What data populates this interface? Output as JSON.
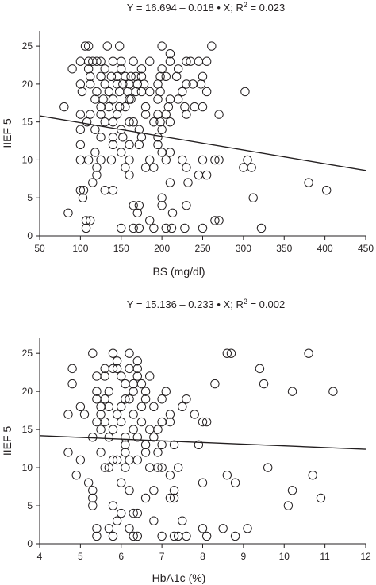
{
  "chart_data": [
    {
      "type": "scatter",
      "title_parts": [
        "Y = 16.694 – 0.018 • X; R",
        "2",
        " = 0.023"
      ],
      "xlabel": "BS (mg/dl)",
      "ylabel": "IIEF 5",
      "xlim": [
        50,
        450
      ],
      "ylim": [
        0,
        27
      ],
      "xticks": [
        50,
        100,
        150,
        200,
        250,
        300,
        350,
        400,
        450
      ],
      "yticks": [
        0,
        5,
        10,
        15,
        20,
        25
      ],
      "fit_line": {
        "x": [
          50,
          450
        ],
        "y": [
          15.8,
          8.6
        ]
      },
      "points": [
        [
          106,
          25
        ],
        [
          110,
          25
        ],
        [
          133,
          25
        ],
        [
          148,
          25
        ],
        [
          200,
          25
        ],
        [
          210,
          24
        ],
        [
          261,
          25
        ],
        [
          100,
          23
        ],
        [
          110,
          23
        ],
        [
          115,
          23
        ],
        [
          120,
          23
        ],
        [
          125,
          23
        ],
        [
          140,
          23
        ],
        [
          150,
          23
        ],
        [
          165,
          23
        ],
        [
          185,
          23
        ],
        [
          210,
          23
        ],
        [
          230,
          23
        ],
        [
          235,
          23
        ],
        [
          245,
          23
        ],
        [
          255,
          23
        ],
        [
          90,
          22
        ],
        [
          110,
          22
        ],
        [
          130,
          22
        ],
        [
          150,
          22
        ],
        [
          175,
          22
        ],
        [
          200,
          22
        ],
        [
          220,
          22
        ],
        [
          112,
          21
        ],
        [
          125,
          21
        ],
        [
          138,
          21
        ],
        [
          145,
          21
        ],
        [
          155,
          21
        ],
        [
          162,
          21
        ],
        [
          168,
          21
        ],
        [
          175,
          21
        ],
        [
          198,
          21
        ],
        [
          205,
          21
        ],
        [
          218,
          21
        ],
        [
          250,
          21
        ],
        [
          100,
          20
        ],
        [
          112,
          20
        ],
        [
          130,
          20
        ],
        [
          145,
          20
        ],
        [
          152,
          20
        ],
        [
          160,
          20
        ],
        [
          170,
          20
        ],
        [
          178,
          20
        ],
        [
          195,
          20
        ],
        [
          230,
          20
        ],
        [
          238,
          20
        ],
        [
          248,
          20
        ],
        [
          102,
          19
        ],
        [
          120,
          19
        ],
        [
          135,
          19
        ],
        [
          148,
          19
        ],
        [
          158,
          19
        ],
        [
          168,
          19
        ],
        [
          175,
          19
        ],
        [
          185,
          19
        ],
        [
          198,
          19
        ],
        [
          225,
          19
        ],
        [
          255,
          19
        ],
        [
          302,
          19
        ],
        [
          118,
          18
        ],
        [
          128,
          18
        ],
        [
          140,
          18
        ],
        [
          160,
          18
        ],
        [
          162,
          18
        ],
        [
          195,
          18
        ],
        [
          210,
          18
        ],
        [
          220,
          18
        ],
        [
          125,
          17
        ],
        [
          135,
          17
        ],
        [
          148,
          17
        ],
        [
          155,
          17
        ],
        [
          180,
          17
        ],
        [
          208,
          17
        ],
        [
          228,
          17
        ],
        [
          240,
          17
        ],
        [
          250,
          17
        ],
        [
          80,
          17
        ],
        [
          100,
          16
        ],
        [
          112,
          16
        ],
        [
          125,
          16
        ],
        [
          145,
          16
        ],
        [
          180,
          16
        ],
        [
          195,
          16
        ],
        [
          205,
          16
        ],
        [
          230,
          16
        ],
        [
          270,
          16
        ],
        [
          108,
          15
        ],
        [
          130,
          15
        ],
        [
          140,
          15
        ],
        [
          160,
          15
        ],
        [
          165,
          15
        ],
        [
          190,
          15
        ],
        [
          198,
          15
        ],
        [
          210,
          15
        ],
        [
          100,
          14
        ],
        [
          118,
          14
        ],
        [
          150,
          14
        ],
        [
          172,
          14
        ],
        [
          200,
          14
        ],
        [
          125,
          13
        ],
        [
          140,
          13
        ],
        [
          152,
          13
        ],
        [
          175,
          13
        ],
        [
          195,
          13
        ],
        [
          100,
          12
        ],
        [
          140,
          12
        ],
        [
          160,
          12
        ],
        [
          172,
          12
        ],
        [
          195,
          12
        ],
        [
          118,
          11
        ],
        [
          150,
          11
        ],
        [
          200,
          11
        ],
        [
          210,
          11
        ],
        [
          100,
          10
        ],
        [
          110,
          10
        ],
        [
          125,
          10
        ],
        [
          138,
          10
        ],
        [
          160,
          10
        ],
        [
          185,
          10
        ],
        [
          205,
          10
        ],
        [
          225,
          10
        ],
        [
          250,
          10
        ],
        [
          265,
          10
        ],
        [
          270,
          10
        ],
        [
          305,
          10
        ],
        [
          120,
          9
        ],
        [
          155,
          9
        ],
        [
          180,
          9
        ],
        [
          190,
          9
        ],
        [
          230,
          9
        ],
        [
          300,
          9
        ],
        [
          310,
          9
        ],
        [
          120,
          8
        ],
        [
          160,
          8
        ],
        [
          245,
          8
        ],
        [
          255,
          8
        ],
        [
          115,
          7
        ],
        [
          210,
          7
        ],
        [
          232,
          7
        ],
        [
          380,
          7
        ],
        [
          100,
          6
        ],
        [
          104,
          6
        ],
        [
          130,
          6
        ],
        [
          140,
          6
        ],
        [
          402,
          6
        ],
        [
          103,
          5
        ],
        [
          200,
          5
        ],
        [
          312,
          5
        ],
        [
          165,
          4
        ],
        [
          172,
          4
        ],
        [
          200,
          4
        ],
        [
          230,
          4
        ],
        [
          85,
          3
        ],
        [
          170,
          3
        ],
        [
          213,
          3
        ],
        [
          107,
          2
        ],
        [
          112,
          2
        ],
        [
          185,
          2
        ],
        [
          265,
          2
        ],
        [
          270,
          2
        ],
        [
          107,
          1
        ],
        [
          150,
          1
        ],
        [
          165,
          1
        ],
        [
          172,
          1
        ],
        [
          190,
          1
        ],
        [
          205,
          1
        ],
        [
          212,
          1
        ],
        [
          228,
          1
        ],
        [
          250,
          1
        ],
        [
          322,
          1
        ]
      ]
    },
    {
      "type": "scatter",
      "title_parts": [
        "Y = 15.136 – 0.233 • X; R",
        "2",
        " = 0.002"
      ],
      "xlabel": "HbA1c (%)",
      "ylabel": "IIEF 5",
      "xlim": [
        4,
        12
      ],
      "ylim": [
        0,
        27
      ],
      "xticks": [
        4,
        5,
        6,
        7,
        8,
        9,
        10,
        11,
        12
      ],
      "yticks": [
        0,
        5,
        10,
        15,
        20,
        25
      ],
      "fit_line": {
        "x": [
          4,
          12
        ],
        "y": [
          14.2,
          12.4
        ]
      },
      "points": [
        [
          5.3,
          25
        ],
        [
          5.8,
          25
        ],
        [
          6.2,
          25
        ],
        [
          8.6,
          25
        ],
        [
          8.7,
          25
        ],
        [
          10.6,
          25
        ],
        [
          6.4,
          24
        ],
        [
          5.9,
          24
        ],
        [
          4.8,
          23
        ],
        [
          5.6,
          23
        ],
        [
          5.8,
          23
        ],
        [
          5.9,
          23
        ],
        [
          6.2,
          23
        ],
        [
          6.4,
          23
        ],
        [
          9.4,
          23
        ],
        [
          5.4,
          22
        ],
        [
          5.6,
          22
        ],
        [
          6.0,
          22
        ],
        [
          6.4,
          22
        ],
        [
          6.7,
          22
        ],
        [
          4.8,
          21
        ],
        [
          6.1,
          21
        ],
        [
          6.3,
          21
        ],
        [
          6.5,
          21
        ],
        [
          8.3,
          21
        ],
        [
          9.5,
          21
        ],
        [
          5.4,
          20
        ],
        [
          5.7,
          20
        ],
        [
          6.3,
          20
        ],
        [
          6.6,
          20
        ],
        [
          7.1,
          20
        ],
        [
          10.2,
          20
        ],
        [
          11.2,
          20
        ],
        [
          5.4,
          19
        ],
        [
          5.6,
          19
        ],
        [
          6.1,
          19
        ],
        [
          6.2,
          19
        ],
        [
          6.6,
          19
        ],
        [
          7.0,
          19
        ],
        [
          7.6,
          19
        ],
        [
          5.0,
          18
        ],
        [
          5.5,
          18
        ],
        [
          5.7,
          18
        ],
        [
          6.0,
          18
        ],
        [
          6.5,
          18
        ],
        [
          6.8,
          18
        ],
        [
          7.5,
          18
        ],
        [
          4.7,
          17
        ],
        [
          5.1,
          17
        ],
        [
          5.5,
          17
        ],
        [
          5.9,
          17
        ],
        [
          6.3,
          17
        ],
        [
          7.2,
          17
        ],
        [
          7.8,
          17
        ],
        [
          5.4,
          16
        ],
        [
          5.6,
          16
        ],
        [
          6.0,
          16
        ],
        [
          6.5,
          16
        ],
        [
          7.0,
          16
        ],
        [
          7.2,
          16
        ],
        [
          8.0,
          16
        ],
        [
          8.1,
          16
        ],
        [
          5.5,
          15
        ],
        [
          5.8,
          15
        ],
        [
          6.3,
          15
        ],
        [
          6.7,
          15
        ],
        [
          6.9,
          15
        ],
        [
          5.3,
          14
        ],
        [
          5.7,
          14
        ],
        [
          6.1,
          14
        ],
        [
          6.4,
          14
        ],
        [
          6.8,
          14
        ],
        [
          6.1,
          13
        ],
        [
          6.6,
          13
        ],
        [
          7.0,
          13
        ],
        [
          7.3,
          13
        ],
        [
          7.9,
          13
        ],
        [
          4.7,
          12
        ],
        [
          5.5,
          12
        ],
        [
          6.1,
          12
        ],
        [
          6.6,
          12
        ],
        [
          6.9,
          12
        ],
        [
          5.0,
          11
        ],
        [
          5.8,
          11
        ],
        [
          5.9,
          11
        ],
        [
          6.2,
          11
        ],
        [
          6.4,
          11
        ],
        [
          5.6,
          10
        ],
        [
          5.7,
          10
        ],
        [
          6.1,
          10
        ],
        [
          6.7,
          10
        ],
        [
          6.9,
          10
        ],
        [
          7.0,
          10
        ],
        [
          7.4,
          10
        ],
        [
          9.6,
          10
        ],
        [
          4.9,
          9
        ],
        [
          7.2,
          9
        ],
        [
          8.6,
          9
        ],
        [
          10.7,
          9
        ],
        [
          5.2,
          8
        ],
        [
          6.0,
          8
        ],
        [
          8.0,
          8
        ],
        [
          8.8,
          8
        ],
        [
          5.3,
          7
        ],
        [
          6.2,
          7
        ],
        [
          6.8,
          7
        ],
        [
          7.3,
          7
        ],
        [
          10.2,
          7
        ],
        [
          5.3,
          6
        ],
        [
          6.6,
          6
        ],
        [
          7.2,
          6
        ],
        [
          7.3,
          6
        ],
        [
          10.9,
          6
        ],
        [
          5.3,
          5
        ],
        [
          5.8,
          5
        ],
        [
          10.1,
          5
        ],
        [
          6.0,
          4
        ],
        [
          6.3,
          4
        ],
        [
          6.4,
          4
        ],
        [
          5.9,
          3
        ],
        [
          6.8,
          3
        ],
        [
          7.5,
          3
        ],
        [
          5.4,
          2
        ],
        [
          5.7,
          2
        ],
        [
          6.2,
          2
        ],
        [
          8.0,
          2
        ],
        [
          8.5,
          2
        ],
        [
          9.1,
          2
        ],
        [
          5.4,
          1
        ],
        [
          5.8,
          1
        ],
        [
          6.3,
          1
        ],
        [
          6.4,
          1
        ],
        [
          7.0,
          1
        ],
        [
          7.3,
          1
        ],
        [
          7.4,
          1
        ],
        [
          7.6,
          1
        ],
        [
          8.1,
          1
        ],
        [
          8.8,
          1
        ]
      ]
    }
  ]
}
